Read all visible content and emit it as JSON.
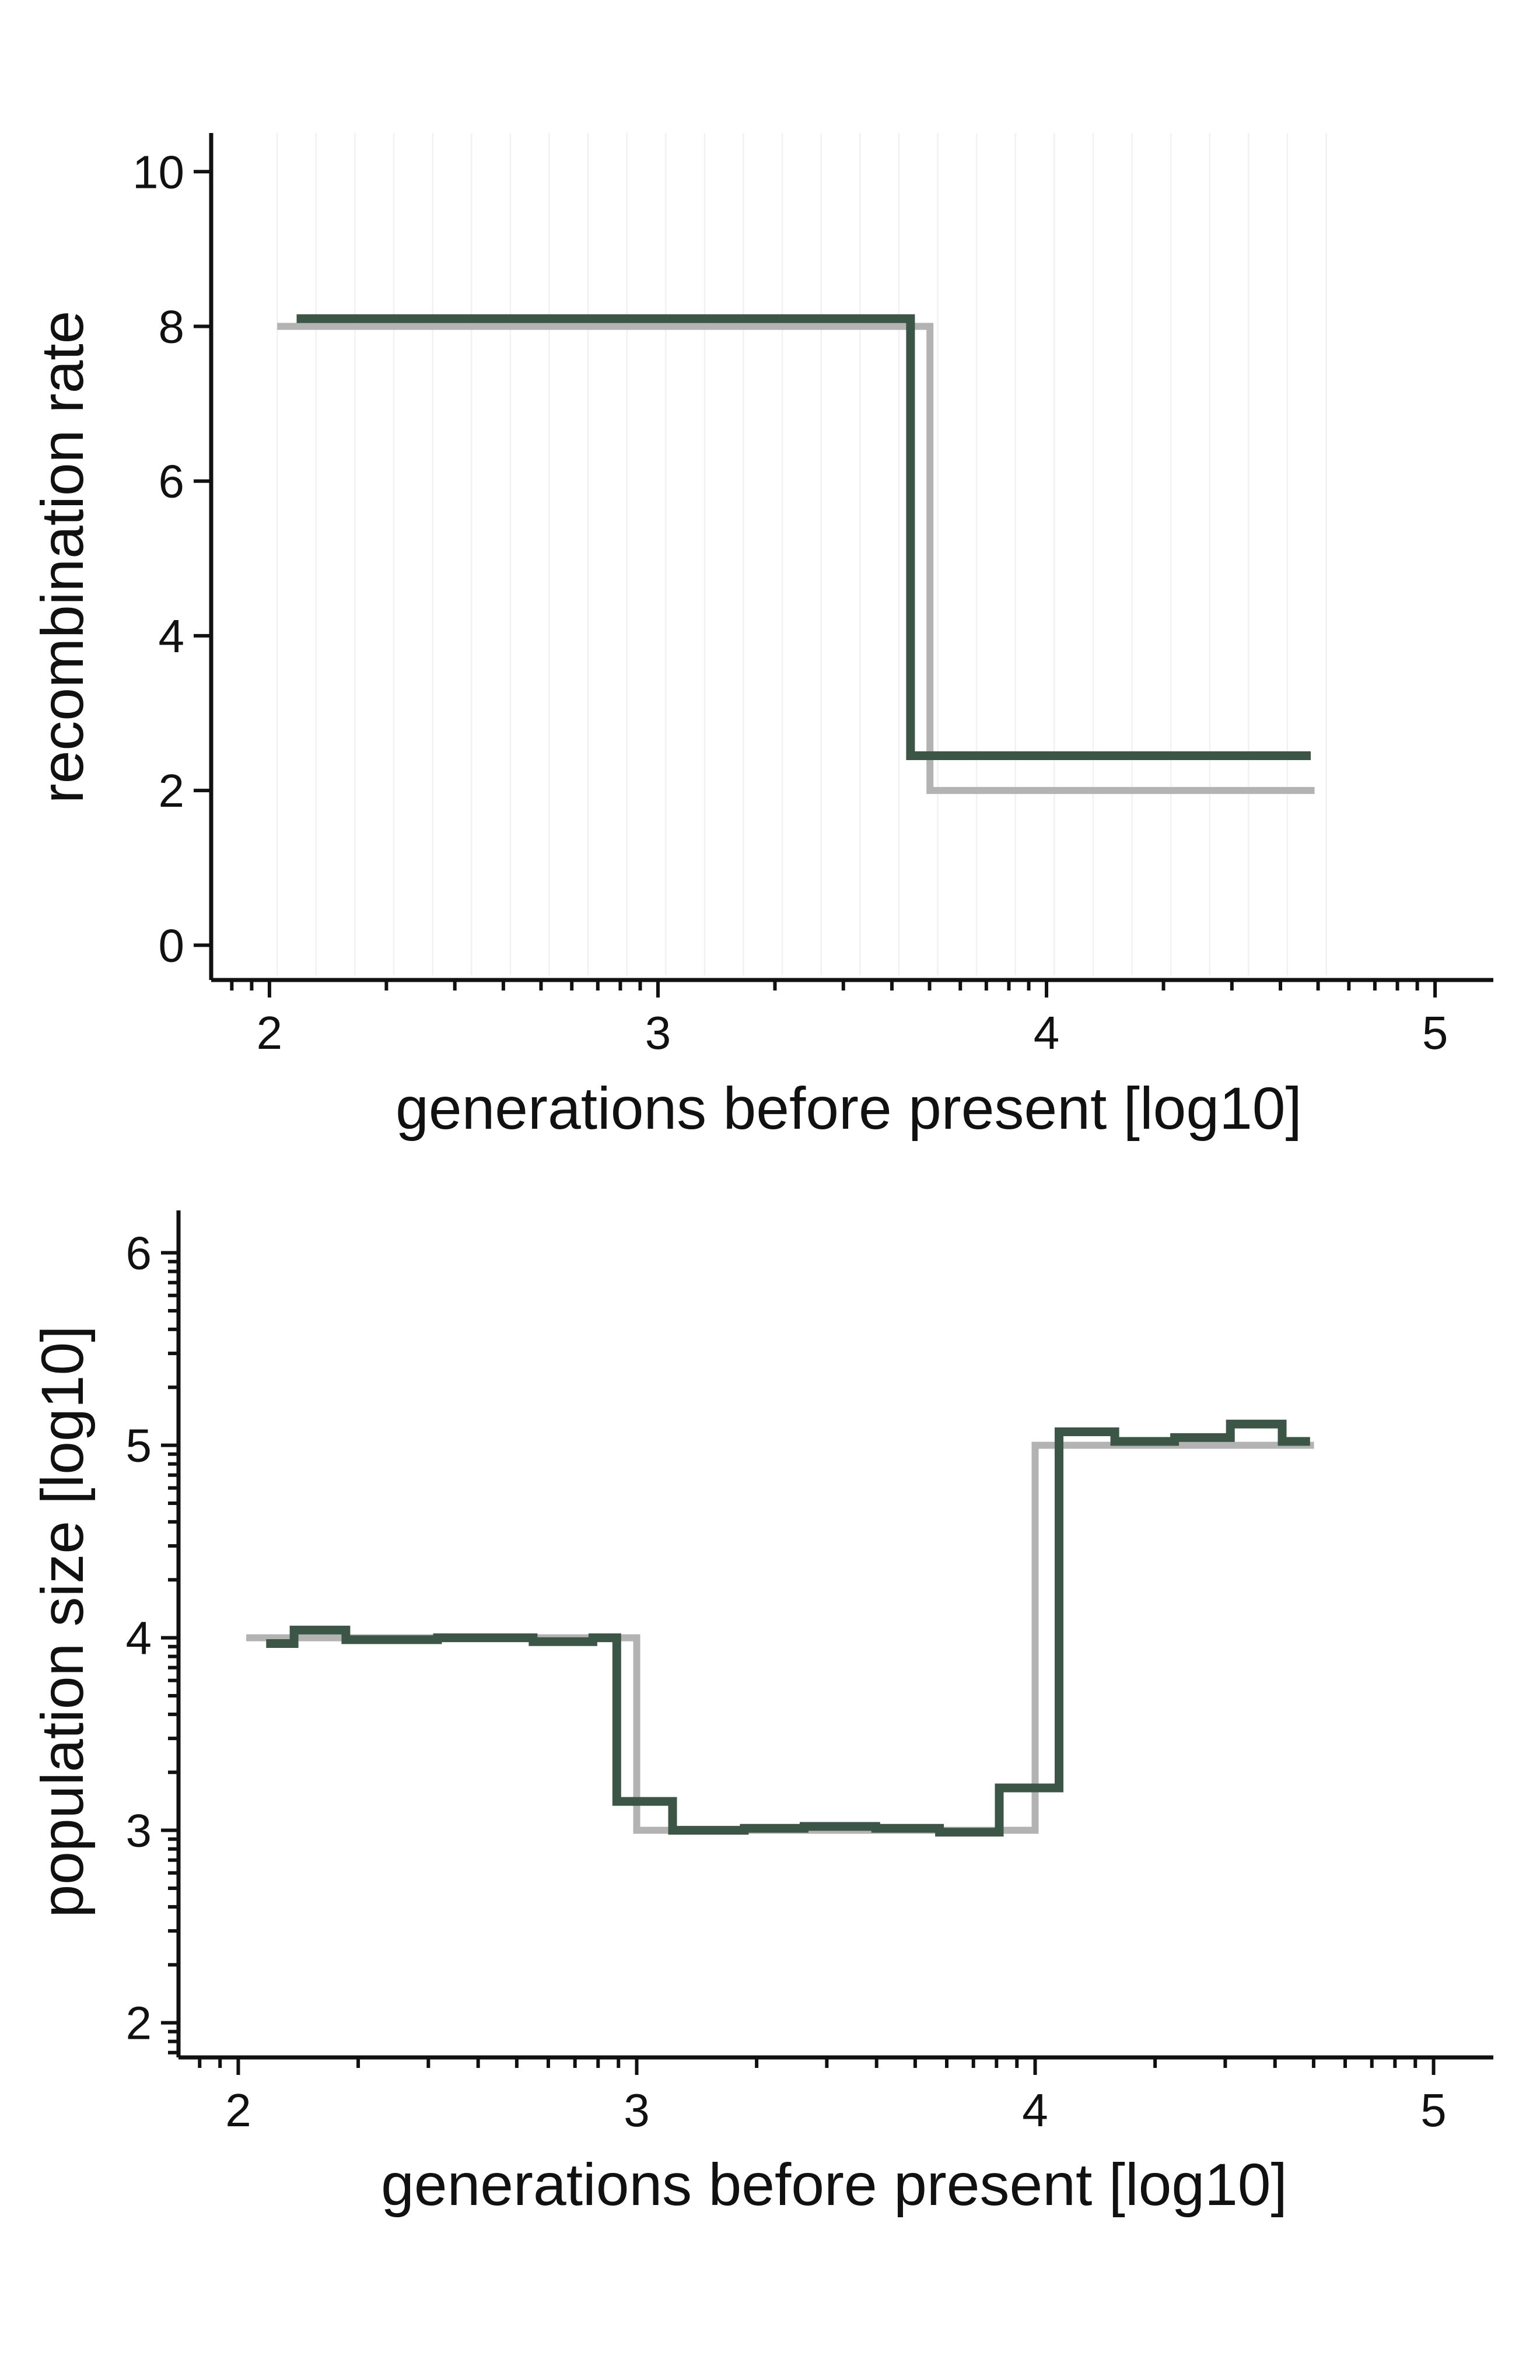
{
  "colors": {
    "estimate": "#3b5647",
    "truth": "#b3b3b3",
    "axis": "#111111",
    "grid": "#f1f1f1"
  },
  "chart_data": [
    {
      "type": "line",
      "step": true,
      "xlabel": "generations before present [log10]",
      "ylabel": "recombination rate",
      "xlim": [
        1.85,
        5.15
      ],
      "ylim": [
        -0.45,
        10.5
      ],
      "x_ticks": [
        "2",
        "3",
        "4",
        "5"
      ],
      "y_ticks": [
        "0",
        "2",
        "4",
        "6",
        "8",
        "10"
      ],
      "x_scale": "log10 exponent with log minor ticks",
      "grid": "faint vertical lines",
      "series": [
        {
          "role": "truth",
          "color": "#b3b3b3",
          "x": [
            2.02,
            3.7,
            3.7,
            4.69
          ],
          "y": [
            8.0,
            8.0,
            2.0,
            2.0
          ]
        },
        {
          "role": "estimate",
          "color": "#3b5647",
          "x": [
            2.07,
            3.65,
            3.65,
            4.68
          ],
          "y": [
            8.1,
            8.1,
            2.45,
            2.45
          ]
        }
      ]
    },
    {
      "type": "line",
      "step": true,
      "xlabel": "generations before present [log10]",
      "ylabel": "population size [log10]",
      "xlim": [
        1.85,
        5.15
      ],
      "ylim": [
        1.82,
        6.22
      ],
      "x_ticks": [
        "2",
        "3",
        "4",
        "5"
      ],
      "y_ticks": [
        "2",
        "3",
        "4",
        "5",
        "6"
      ],
      "x_scale": "log10 exponent with log minor ticks",
      "y_scale": "log10 exponent with log minor ticks",
      "grid": "none",
      "series": [
        {
          "role": "truth",
          "color": "#b3b3b3",
          "x": [
            2.02,
            3.0,
            3.0,
            4.0,
            4.0,
            4.7
          ],
          "y": [
            4.0,
            4.0,
            3.0,
            3.0,
            5.0,
            5.0
          ]
        },
        {
          "role": "estimate",
          "color": "#3b5647",
          "x": [
            2.07,
            2.14,
            2.14,
            2.27,
            2.27,
            2.5,
            2.5,
            2.74,
            2.74,
            2.89,
            2.89,
            2.95,
            2.95,
            3.09,
            3.09,
            3.27,
            3.27,
            3.42,
            3.42,
            3.6,
            3.6,
            3.76,
            3.76,
            3.91,
            3.91,
            4.06,
            4.06,
            4.2,
            4.2,
            4.35,
            4.35,
            4.49,
            4.49,
            4.62,
            4.62,
            4.69
          ],
          "y": [
            3.97,
            3.97,
            4.04,
            4.04,
            3.99,
            3.99,
            4.0,
            4.0,
            3.98,
            3.98,
            4.0,
            4.0,
            3.15,
            3.15,
            3.0,
            3.0,
            3.01,
            3.01,
            3.02,
            3.02,
            3.01,
            3.01,
            2.99,
            2.99,
            3.22,
            3.22,
            5.07,
            5.07,
            5.02,
            5.02,
            5.04,
            5.04,
            5.11,
            5.11,
            5.02,
            5.02
          ]
        }
      ]
    }
  ]
}
